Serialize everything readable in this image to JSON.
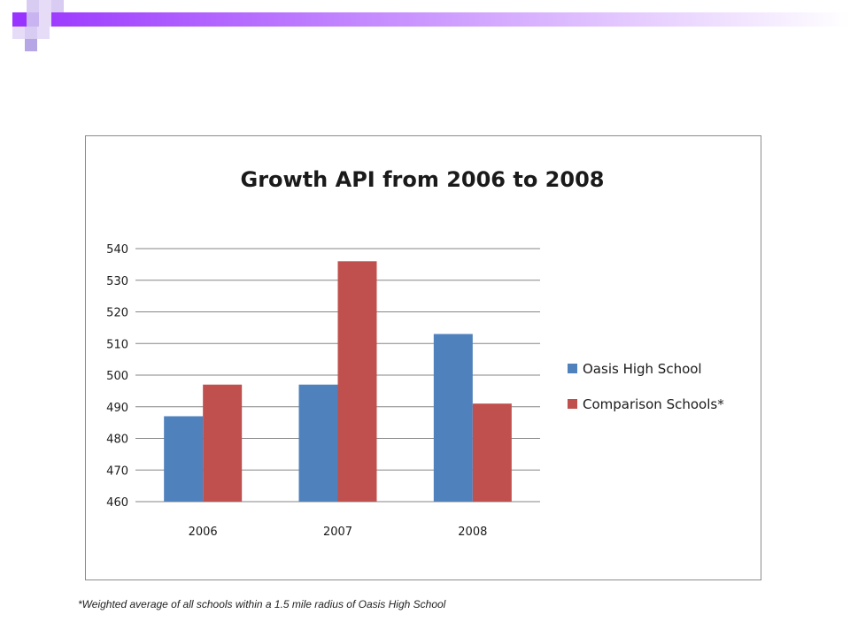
{
  "colors": {
    "accent_dark": "#9933ff",
    "accent_light": "#e6d4fa",
    "accent_mid": "#b7a6e6",
    "series_1": "#4f81bd",
    "series_2": "#c0504d"
  },
  "chart_data": {
    "type": "bar",
    "title": "Growth API from 2006 to 2008",
    "categories": [
      "2006",
      "2007",
      "2008"
    ],
    "series": [
      {
        "name": "Oasis High School",
        "values": [
          487,
          497,
          513
        ],
        "color": "#4f81bd"
      },
      {
        "name": "Comparison Schools*",
        "values": [
          497,
          536,
          491
        ],
        "color": "#c0504d"
      }
    ],
    "ylim": [
      460,
      540
    ],
    "yticks": [
      "540",
      "530",
      "520",
      "510",
      "500",
      "490",
      "480",
      "470",
      "460"
    ],
    "grid": true,
    "legend_position": "right"
  },
  "footnote": "*Weighted average of all schools within a 1.5 mile radius of Oasis High School"
}
